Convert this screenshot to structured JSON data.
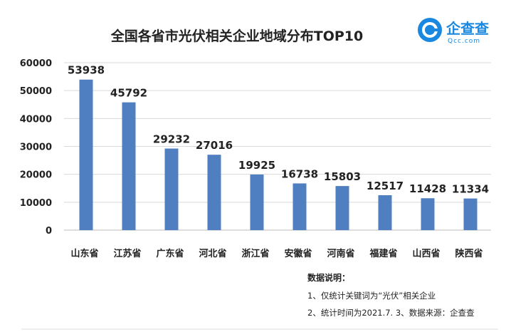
{
  "logo": {
    "name": "企查查",
    "domain": "Qcc.com",
    "color": "#1a88e0"
  },
  "chart_data": {
    "type": "bar",
    "title": "全国各省市光伏相关企业地域分布TOP10",
    "categories": [
      "山东省",
      "江苏省",
      "广东省",
      "河北省",
      "浙江省",
      "安徽省",
      "河南省",
      "福建省",
      "山西省",
      "陕西省"
    ],
    "values": [
      53938,
      45792,
      29232,
      27016,
      19925,
      16738,
      15803,
      12517,
      11428,
      11334
    ],
    "ylim": [
      0,
      60000
    ],
    "yticks": [
      0,
      10000,
      20000,
      30000,
      40000,
      50000,
      60000
    ],
    "xlabel": "",
    "ylabel": "",
    "grid": true,
    "bar_color": "#4f7fc0"
  },
  "notes": {
    "heading": "数据说明：",
    "lines": [
      "1、仅统计关键词为“光伏”相关企业",
      "2、统计时间为2021.7.  3、数据来源：企查查"
    ]
  }
}
